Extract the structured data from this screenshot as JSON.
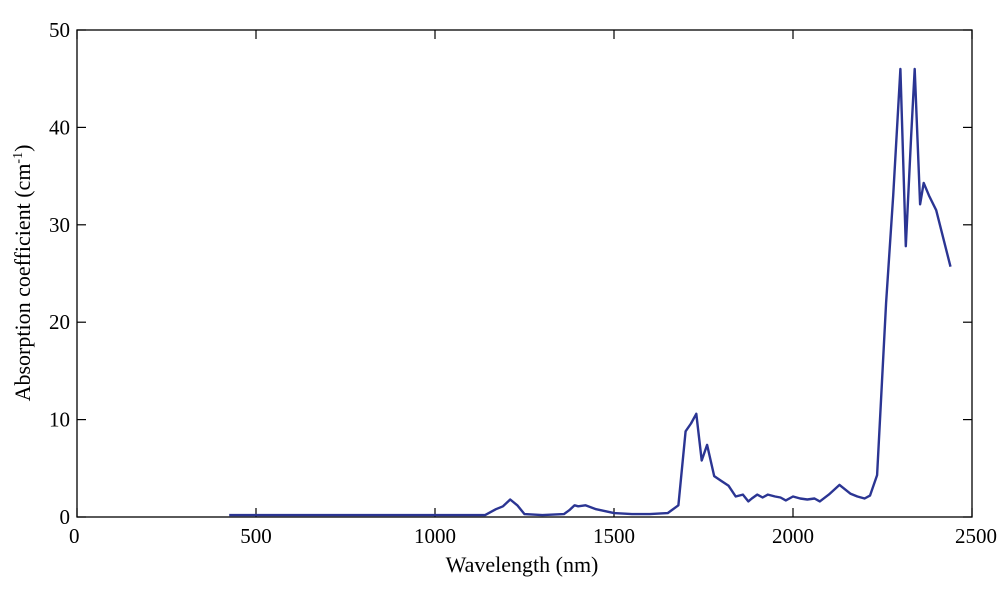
{
  "chart_data": {
    "type": "line",
    "title": "",
    "xlabel": "Wavelength (nm)",
    "ylabel_main": "Absorption coefficient (cm",
    "ylabel_sup": "-1",
    "ylabel_close": ")",
    "xlim": [
      0,
      2500
    ],
    "ylim": [
      0,
      50
    ],
    "xticks": [
      0,
      500,
      1000,
      1500,
      2000,
      2500
    ],
    "yticks": [
      0,
      10,
      20,
      30,
      40,
      50
    ],
    "grid": false,
    "line_color": "#2b3593",
    "series": [
      {
        "x": [
          425,
          500,
          600,
          700,
          800,
          900,
          1000,
          1100,
          1140,
          1170,
          1190,
          1210,
          1230,
          1250,
          1300,
          1360,
          1375,
          1390,
          1400,
          1420,
          1450,
          1500,
          1550,
          1600,
          1650,
          1680,
          1700,
          1715,
          1730,
          1745,
          1760,
          1780,
          1800,
          1820,
          1840,
          1860,
          1875,
          1885,
          1900,
          1915,
          1930,
          1950,
          1965,
          1980,
          2000,
          2020,
          2040,
          2060,
          2075,
          2100,
          2130,
          2160,
          2180,
          2200,
          2215,
          2235,
          2260,
          2280,
          2300,
          2315,
          2330,
          2340,
          2355,
          2365,
          2380,
          2400,
          2440
        ],
        "y": [
          0.2,
          0.2,
          0.2,
          0.2,
          0.2,
          0.2,
          0.2,
          0.2,
          0.2,
          0.8,
          1.1,
          1.8,
          1.2,
          0.3,
          0.2,
          0.3,
          0.7,
          1.2,
          1.1,
          1.2,
          0.8,
          0.4,
          0.3,
          0.3,
          0.4,
          1.2,
          8.8,
          9.6,
          10.6,
          5.8,
          7.4,
          4.2,
          3.7,
          3.2,
          2.1,
          2.3,
          1.6,
          1.9,
          2.3,
          2.0,
          2.3,
          2.1,
          2.0,
          1.7,
          2.1,
          1.9,
          1.8,
          1.9,
          1.6,
          2.3,
          3.3,
          2.4,
          2.1,
          1.9,
          2.2,
          4.3,
          22,
          33,
          46,
          27.8,
          39,
          46,
          32.1,
          34.3,
          33,
          31.5,
          25.7
        ]
      }
    ]
  }
}
